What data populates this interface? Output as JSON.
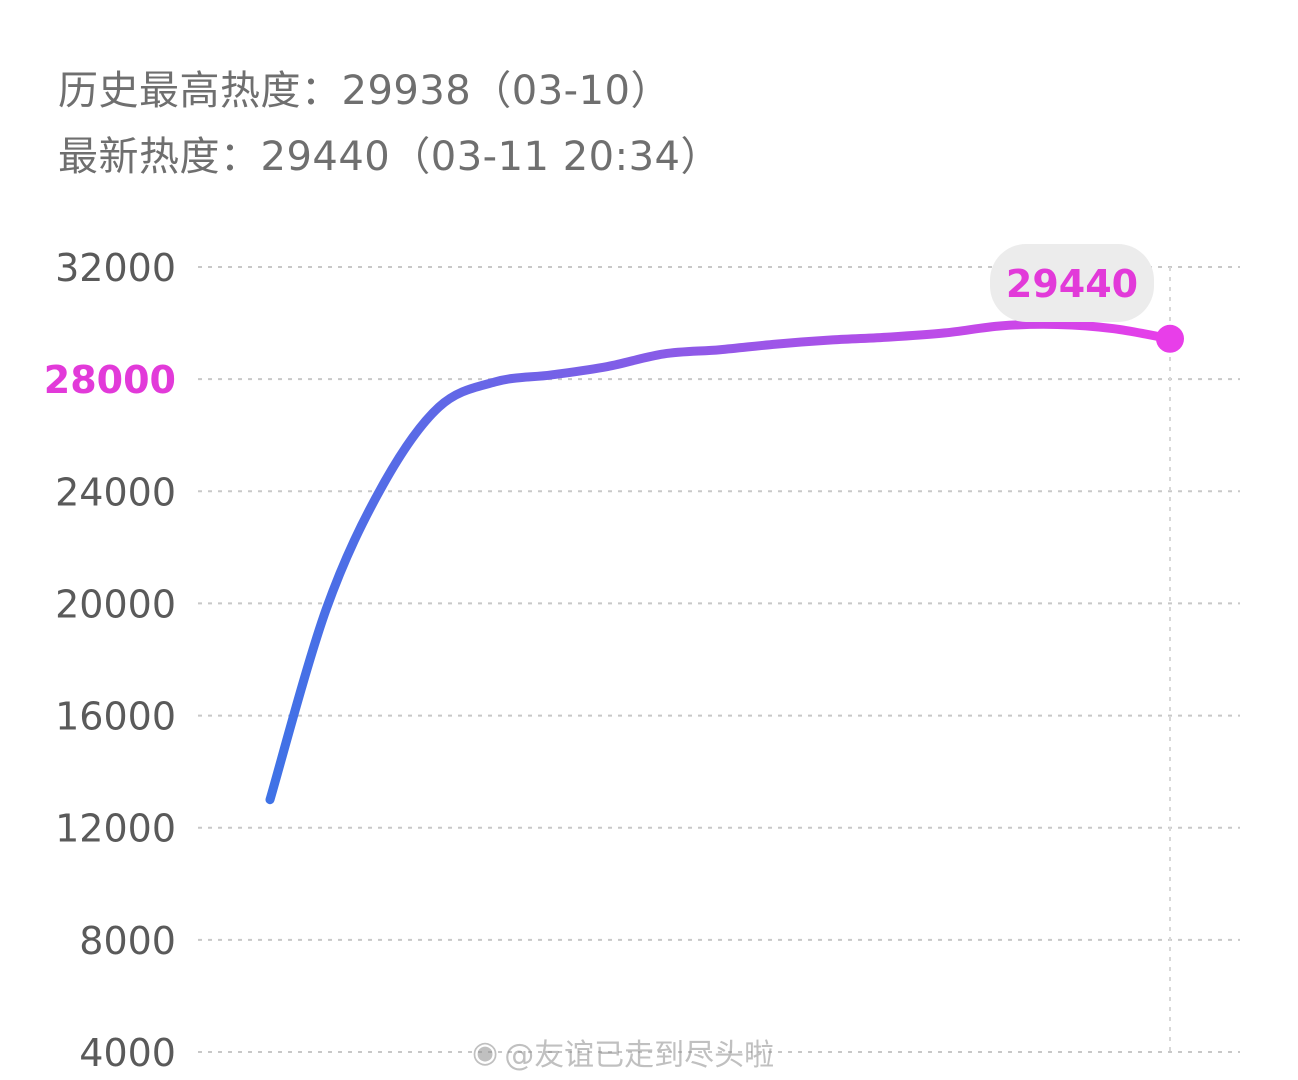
{
  "header": {
    "peak_label": "历史最高热度：",
    "peak_value": "29938",
    "peak_date": "（03-10）",
    "latest_label": "最新热度：",
    "latest_value": "29440",
    "latest_time": "（03-11 20:34）"
  },
  "watermark": {
    "text": "@友谊已走到尽头啦",
    "icon": "weibo-logo-icon"
  },
  "colors": {
    "line_start": "#3f72e6",
    "line_end": "#e83ee9",
    "highlight": "#e23ad9",
    "grid": "#c8c8c8",
    "tooltip_bg": "#ececec"
  },
  "chart_data": {
    "type": "line",
    "yticks": [
      "32000",
      "28000",
      "24000",
      "20000",
      "16000",
      "12000",
      "8000",
      "4000"
    ],
    "highlight_tick": "28000",
    "ylim": [
      4000,
      32000
    ],
    "grid": true,
    "series": [
      {
        "values": [
          13000,
          19800,
          24200,
          27000,
          27900,
          28150,
          28450,
          28900,
          29050,
          29250,
          29400,
          29500,
          29650,
          29900,
          29950,
          29800,
          29440
        ]
      }
    ],
    "tooltip": {
      "value": "29440"
    }
  }
}
